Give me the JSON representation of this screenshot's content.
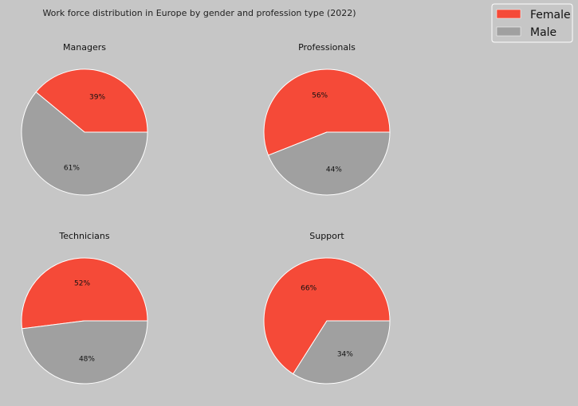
{
  "figure": {
    "title": "Work force distribution in Europe by gender and profession type (2022)"
  },
  "legend": {
    "placement": "top-right",
    "items": [
      {
        "label": "Female",
        "color": "#f54a38"
      },
      {
        "label": "Male",
        "color": "#a0a0a0"
      }
    ]
  },
  "colors": {
    "background": "#c6c6c6",
    "female": "#f54a38",
    "male": "#a0a0a0"
  },
  "chart_data": [
    {
      "type": "pie",
      "title": "Managers",
      "categories": [
        "Female",
        "Male"
      ],
      "values": [
        39,
        61
      ],
      "labels": [
        "39%",
        "61%"
      ]
    },
    {
      "type": "pie",
      "title": "Professionals",
      "categories": [
        "Female",
        "Male"
      ],
      "values": [
        56,
        44
      ],
      "labels": [
        "56%",
        "44%"
      ]
    },
    {
      "type": "pie",
      "title": "Technicians",
      "categories": [
        "Female",
        "Male"
      ],
      "values": [
        52,
        48
      ],
      "labels": [
        "52%",
        "48%"
      ]
    },
    {
      "type": "pie",
      "title": "Support",
      "categories": [
        "Female",
        "Male"
      ],
      "values": [
        66,
        34
      ],
      "labels": [
        "66%",
        "34%"
      ]
    }
  ]
}
